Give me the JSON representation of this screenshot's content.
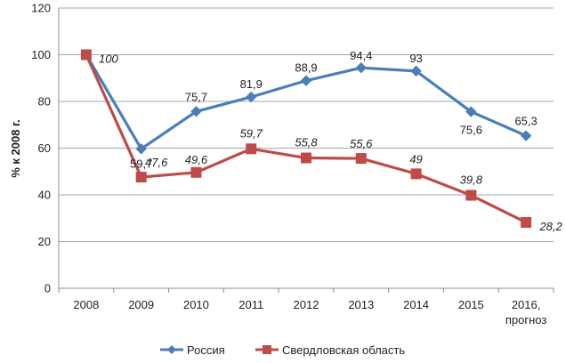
{
  "chart_data": {
    "type": "line",
    "ylabel": "% к 2008 г.",
    "xlabel": "",
    "ylim": [
      0,
      120
    ],
    "yticks": [
      0,
      20,
      40,
      60,
      80,
      100,
      120
    ],
    "grid": "horizontal",
    "legend_position": "bottom",
    "categories": [
      "2008",
      "2009",
      "2010",
      "2011",
      "2012",
      "2013",
      "2014",
      "2015",
      "2016,\nпрогноз"
    ],
    "series": [
      {
        "name": "Россия",
        "values": [
          100,
          59.7,
          75.7,
          81.9,
          88.9,
          94.4,
          93,
          75.6,
          65.3
        ],
        "labels": [
          "",
          "59,7",
          "75,7",
          "81,9",
          "88,9",
          "94,4",
          "93",
          "75,6",
          "65,3"
        ],
        "color": "#4A7EBB",
        "marker": "diamond",
        "label_style": "normal"
      },
      {
        "name": "Свердловская область",
        "values": [
          100,
          47.6,
          49.6,
          59.7,
          55.8,
          55.6,
          49,
          39.8,
          28.2
        ],
        "labels": [
          "100",
          "47,6",
          "49,6",
          "59,7",
          "55,8",
          "55,6",
          "49",
          "39,8",
          "28,2"
        ],
        "color": "#BE4B48",
        "marker": "square",
        "label_style": "italic"
      }
    ]
  }
}
